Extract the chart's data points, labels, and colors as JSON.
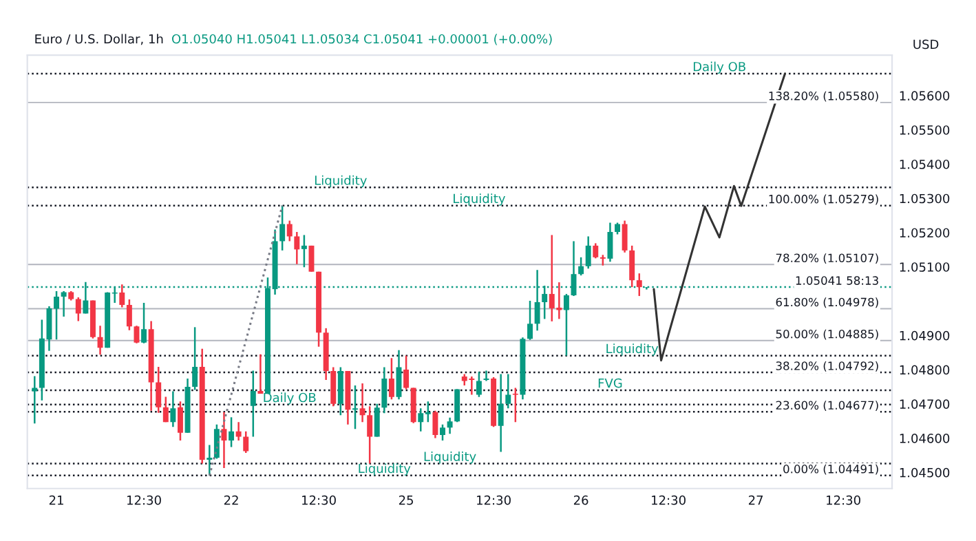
{
  "chart_data": {
    "type": "candlestick",
    "title": "Euro / U.S. Dollar, 1h",
    "subtitle": "O1.05040 H1.05041 L1.05034 C1.05041 +0.00001 (+0.00%)",
    "categories": [
      null,
      null,
      null,
      "21",
      null,
      null,
      null,
      null,
      null,
      null,
      null,
      null,
      null,
      null,
      null,
      "12:30",
      null,
      null,
      null,
      null,
      null,
      null,
      null,
      null,
      null,
      null,
      null,
      "22",
      null,
      null,
      null,
      null,
      null,
      null,
      null,
      null,
      null,
      null,
      null,
      "12:30",
      null,
      null,
      null,
      null,
      null,
      null,
      null,
      null,
      null,
      null,
      null,
      "25",
      null,
      null,
      null,
      null,
      null,
      null,
      null,
      null,
      null,
      null,
      null,
      "12:30",
      null,
      null,
      null,
      null,
      null,
      null,
      null,
      null,
      null,
      null,
      null,
      "26",
      null,
      null,
      null,
      null,
      null,
      null,
      null,
      null,
      null,
      null,
      null,
      "12:30",
      null,
      null,
      null,
      null,
      null,
      null,
      null,
      null,
      null,
      null,
      null,
      "27",
      null,
      null,
      null,
      null,
      null,
      null,
      null,
      null,
      null,
      null,
      null,
      "12:30",
      null,
      null,
      null,
      null,
      null,
      null
    ],
    "ohlc": [
      [
        1.04737,
        1.04781,
        1.04643,
        1.04747
      ],
      [
        1.04747,
        1.04946,
        1.0471,
        1.04891
      ],
      [
        1.04888,
        1.04985,
        1.04855,
        1.04979
      ],
      [
        1.04978,
        1.05029,
        1.04888,
        1.05013
      ],
      [
        1.05013,
        1.05029,
        1.04955,
        1.05026
      ],
      [
        1.05026,
        1.05029,
        1.05002,
        1.05006
      ],
      [
        1.05006,
        1.05011,
        1.04942,
        1.04964
      ],
      [
        1.04964,
        1.05056,
        1.04964,
        1.05002
      ],
      [
        1.05002,
        1.05002,
        1.04891,
        1.04895
      ],
      [
        1.04895,
        1.04928,
        1.04844,
        1.04864
      ],
      [
        1.04864,
        1.05026,
        1.04864,
        1.05025
      ],
      [
        1.05022,
        1.05042,
        1.04995,
        1.05025
      ],
      [
        1.05025,
        1.05049,
        1.04982,
        1.04989
      ],
      [
        1.04989,
        1.05005,
        1.04915,
        1.04926
      ],
      [
        1.04926,
        1.04928,
        1.04877,
        1.04879
      ],
      [
        1.04879,
        1.04995,
        1.04877,
        1.04918
      ],
      [
        1.04918,
        1.04942,
        1.0468,
        1.04763
      ],
      [
        1.04763,
        1.04808,
        1.04674,
        1.0469
      ],
      [
        1.0469,
        1.04721,
        1.04647,
        1.04647
      ],
      [
        1.04647,
        1.04737,
        1.04633,
        1.04687
      ],
      [
        1.0469,
        1.04707,
        1.04593,
        1.04616
      ],
      [
        1.04616,
        1.04774,
        1.04616,
        1.0475
      ],
      [
        1.0475,
        1.04924,
        1.04741,
        1.04808
      ],
      [
        1.04808,
        1.04861,
        1.04526,
        1.04537
      ],
      [
        1.04537,
        1.0458,
        1.04491,
        1.04543
      ],
      [
        1.04543,
        1.0464,
        1.0454,
        1.04627
      ],
      [
        1.04627,
        1.04676,
        1.04513,
        1.04593
      ],
      [
        1.04593,
        1.04661,
        1.04574,
        1.0462
      ],
      [
        1.0462,
        1.04647,
        1.04593,
        1.04604
      ],
      [
        1.04604,
        1.0462,
        1.04557,
        1.04562
      ],
      [
        1.04694,
        1.04797,
        1.04604,
        1.04738
      ],
      [
        1.04738,
        1.04845,
        1.0473,
        1.0473
      ],
      [
        1.0473,
        1.05069,
        1.0473,
        1.05038
      ],
      [
        1.05035,
        1.05209,
        1.05019,
        1.05175
      ],
      [
        1.05175,
        1.05279,
        1.05148,
        1.05225
      ],
      [
        1.05225,
        1.05235,
        1.05175,
        1.05189
      ],
      [
        1.05189,
        1.05202,
        1.05108,
        1.05151
      ],
      [
        1.05152,
        1.05193,
        1.05099,
        1.05162
      ],
      [
        1.05162,
        1.05162,
        1.05086,
        1.05086
      ],
      [
        1.05086,
        1.05086,
        1.04867,
        1.04908
      ],
      [
        1.04908,
        1.04921,
        1.0477,
        1.04796
      ],
      [
        1.04796,
        1.04807,
        1.04693,
        1.047
      ],
      [
        1.047,
        1.04807,
        1.04667,
        1.04796
      ],
      [
        1.04796,
        1.04796,
        1.0464,
        1.04683
      ],
      [
        1.04683,
        1.04754,
        1.04627,
        1.04687
      ],
      [
        1.04687,
        1.0476,
        1.04647,
        1.04667
      ],
      [
        1.04667,
        1.04693,
        1.04526,
        1.04604
      ],
      [
        1.04604,
        1.047,
        1.04604,
        1.04689
      ],
      [
        1.04689,
        1.04807,
        1.04673,
        1.04774
      ],
      [
        1.04774,
        1.04834,
        1.04713,
        1.0472
      ],
      [
        1.0472,
        1.04857,
        1.04713,
        1.04807
      ],
      [
        1.048,
        1.04841,
        1.04743,
        1.04747
      ],
      [
        1.04747,
        1.04747,
        1.04644,
        1.04647
      ],
      [
        1.04647,
        1.04687,
        1.0462,
        1.04673
      ],
      [
        1.0467,
        1.04707,
        1.04647,
        1.04676
      ],
      [
        1.04676,
        1.0468,
        1.046,
        1.04609
      ],
      [
        1.04609,
        1.0464,
        1.04593,
        1.04631
      ],
      [
        1.04631,
        1.0466,
        1.04613,
        1.04649
      ],
      [
        1.04649,
        1.04743,
        1.04647,
        1.04743
      ],
      [
        1.0478,
        1.04787,
        1.04754,
        1.04767
      ],
      [
        1.04774,
        1.0478,
        1.04727,
        1.0477
      ],
      [
        1.04727,
        1.04794,
        1.0472,
        1.04767
      ],
      [
        1.0477,
        1.04797,
        1.04767,
        1.04774
      ],
      [
        1.04774,
        1.04778,
        1.04633,
        1.04636
      ],
      [
        1.04636,
        1.04787,
        1.0456,
        1.047
      ],
      [
        1.047,
        1.04787,
        1.04687,
        1.04727
      ],
      [
        1.0473,
        1.04747,
        1.04647,
        1.04727
      ],
      [
        1.04727,
        1.04894,
        1.04713,
        1.0489
      ],
      [
        1.0489,
        1.05001,
        1.04887,
        1.04934
      ],
      [
        1.04934,
        1.05091,
        1.04914,
        1.04997
      ],
      [
        1.04997,
        1.05045,
        1.04948,
        1.05021
      ],
      [
        1.05021,
        1.05193,
        1.04941,
        1.04979
      ],
      [
        1.04981,
        1.05055,
        1.04948,
        1.04974
      ],
      [
        1.04974,
        1.05021,
        1.04841,
        1.05017
      ],
      [
        1.05017,
        1.05175,
        1.05015,
        1.05079
      ],
      [
        1.05079,
        1.05128,
        1.05075,
        1.05102
      ],
      [
        1.05102,
        1.05189,
        1.05095,
        1.05162
      ],
      [
        1.05162,
        1.05169,
        1.05125,
        1.05128
      ],
      [
        1.05128,
        1.05135,
        1.05104,
        1.05124
      ],
      [
        1.05124,
        1.05229,
        1.05115,
        1.05202
      ],
      [
        1.05202,
        1.05229,
        1.05195,
        1.05225
      ],
      [
        1.05225,
        1.05235,
        1.05142,
        1.05148
      ],
      [
        1.05148,
        1.05162,
        1.05041,
        1.05061
      ],
      [
        1.05061,
        1.05081,
        1.05015,
        1.05041
      ],
      [
        1.0504,
        1.05041,
        1.05034,
        1.05041
      ],
      null,
      null,
      null,
      null,
      null,
      null,
      null,
      null,
      null,
      null,
      null,
      null,
      null,
      null,
      null,
      null,
      null,
      null,
      null,
      null,
      null,
      null,
      null,
      null,
      null,
      null,
      null,
      null,
      null,
      null,
      null,
      null,
      null
    ],
    "colors": [
      "#089981",
      "#089981",
      "#089981",
      "#089981",
      "#089981",
      "#f23645",
      "#f23645",
      "#089981",
      "#f23645",
      "#f23645",
      "#089981",
      "#089981",
      "#f23645",
      "#f23645",
      "#f23645",
      "#089981",
      "#f23645",
      "#f23645",
      "#f23645",
      "#089981",
      "#f23645",
      "#089981",
      "#089981",
      "#f23645",
      "#089981",
      "#089981",
      "#f23645",
      "#089981",
      "#f23645",
      "#f23645",
      "#089981",
      "#f23645",
      "#089981",
      "#089981",
      "#089981",
      "#f23645",
      "#f23645",
      "#089981",
      "#f23645",
      "#f23645",
      "#f23645",
      "#f23645",
      "#089981",
      "#f23645",
      "#089981",
      "#f23645",
      "#f23645",
      "#089981",
      "#089981",
      "#f23645",
      "#089981",
      "#f23645",
      "#f23645",
      "#089981",
      "#089981",
      "#f23645",
      "#089981",
      "#089981",
      "#089981",
      "#f23645",
      "#f23645",
      "#089981",
      "#089981",
      "#f23645",
      "#089981",
      "#089981",
      "#f23645",
      "#089981",
      "#089981",
      "#089981",
      "#089981",
      "#f23645",
      "#f23645",
      "#089981",
      "#089981",
      "#089981",
      "#089981",
      "#f23645",
      "#f23645",
      "#089981",
      "#089981",
      "#f23645",
      "#f23645",
      "#f23645",
      "#089981",
      null,
      null,
      null,
      null,
      null,
      null,
      null,
      null,
      null,
      null,
      null,
      null,
      null,
      null,
      null,
      null,
      null,
      null,
      null,
      null,
      null,
      null,
      null,
      null,
      null,
      null,
      null,
      null,
      null,
      null,
      null,
      null,
      null
    ],
    "series": [
      {
        "type": "line",
        "color": "#333333",
        "line_style": "solid",
        "values": [
          null,
          null,
          null,
          null,
          null,
          null,
          null,
          null,
          null,
          null,
          null,
          null,
          null,
          null,
          null,
          null,
          null,
          null,
          null,
          null,
          null,
          null,
          null,
          null,
          null,
          null,
          null,
          null,
          null,
          null,
          null,
          null,
          null,
          null,
          null,
          null,
          null,
          null,
          null,
          null,
          null,
          null,
          null,
          null,
          null,
          null,
          null,
          null,
          null,
          null,
          null,
          null,
          null,
          null,
          null,
          null,
          null,
          null,
          null,
          null,
          null,
          null,
          null,
          null,
          null,
          null,
          null,
          null,
          null,
          null,
          null,
          null,
          null,
          null,
          null,
          null,
          null,
          null,
          null,
          null,
          null,
          null,
          null,
          null,
          null,
          1.05035,
          1.04827,
          null,
          null,
          null,
          null,
          null,
          1.05276,
          null,
          1.05186,
          null,
          1.05336,
          1.05278,
          null,
          null,
          null,
          null,
          null,
          1.05664,
          null,
          null,
          null,
          null,
          null,
          null,
          null,
          null,
          null,
          null,
          null,
          null,
          null,
          null
        ]
      },
      {
        "type": "line",
        "color": "#787b86",
        "line_style": "dotted",
        "values": [
          null,
          null,
          null,
          null,
          null,
          null,
          null,
          null,
          null,
          null,
          null,
          null,
          null,
          null,
          null,
          null,
          null,
          null,
          null,
          null,
          null,
          null,
          null,
          null,
          1.04491,
          null,
          null,
          null,
          null,
          null,
          null,
          null,
          null,
          null,
          1.05279,
          null,
          null,
          null,
          null,
          null,
          null,
          null,
          null,
          null,
          null,
          null,
          null,
          null,
          null,
          null,
          null,
          null,
          null,
          null,
          null,
          null,
          null,
          null,
          null,
          null,
          null,
          null,
          null,
          null,
          null,
          null,
          null,
          null,
          null,
          null,
          null,
          null,
          null,
          null,
          null,
          null,
          null,
          null,
          null,
          null,
          null,
          null,
          null,
          null,
          null,
          null,
          null,
          null,
          null,
          null,
          null,
          null,
          null,
          null,
          null,
          null,
          null,
          null,
          null,
          null,
          null,
          null,
          null,
          null,
          null,
          null,
          null,
          null,
          null,
          null,
          null,
          null,
          null,
          null,
          null,
          null,
          null,
          null
        ]
      }
    ],
    "ref_lines": [
      {
        "axis": "y",
        "value": 1.05664,
        "label": null,
        "color": "#131722",
        "line_style": "dotted"
      },
      {
        "axis": "y",
        "value": 1.0558,
        "label": "138.20% (1.05580)",
        "color": "#b2b5be",
        "line_style": "solid"
      },
      {
        "axis": "y",
        "value": 1.05332,
        "label": null,
        "color": "#131722",
        "line_style": "dotted"
      },
      {
        "axis": "y",
        "value": 1.05279,
        "label": "100.00% (1.05279)",
        "color": "#131722",
        "line_style": "dotted"
      },
      {
        "axis": "y",
        "value": 1.05107,
        "label": "78.20% (1.05107)",
        "color": "#b2b5be",
        "line_style": "solid"
      },
      {
        "axis": "y",
        "value": 1.05041,
        "label": "1.05041 58:13",
        "color": "#089981",
        "line_style": "dotted"
      },
      {
        "axis": "y",
        "value": 1.04978,
        "label": "61.80% (1.04978)",
        "color": "#b2b5be",
        "line_style": "solid"
      },
      {
        "axis": "y",
        "value": 1.04885,
        "label": "50.00% (1.04885)",
        "color": "#b2b5be",
        "line_style": "solid"
      },
      {
        "axis": "y",
        "value": 1.04841,
        "label": null,
        "color": "#131722",
        "line_style": "dotted"
      },
      {
        "axis": "y",
        "value": 1.04792,
        "label": "38.20% (1.04792)",
        "color": "#131722",
        "line_style": "dotted"
      },
      {
        "axis": "y",
        "value": 1.0474,
        "label": null,
        "color": "#131722",
        "line_style": "dotted"
      },
      {
        "axis": "y",
        "value": 1.04698,
        "label": null,
        "color": "#131722",
        "line_style": "dotted"
      },
      {
        "axis": "y",
        "value": 1.04677,
        "label": "23.60% (1.04677)",
        "color": "#131722",
        "line_style": "dotted"
      },
      {
        "axis": "y",
        "value": 1.04526,
        "label": null,
        "color": "#131722",
        "line_style": "dotted"
      },
      {
        "axis": "y",
        "value": 1.04491,
        "label": "0.00% (1.04491)",
        "color": "#131722",
        "line_style": "dotted"
      }
    ],
    "annotations": [
      {
        "text": "Daily OB",
        "y": 1.05664
      },
      {
        "text": "Liquidity",
        "y": 1.05332
      },
      {
        "text": "Liquidity",
        "y": 1.05279
      },
      {
        "text": "Liquidity",
        "y": 1.04841
      },
      {
        "text": "FVG",
        "y": 1.0474
      },
      {
        "text": "Daily OB",
        "y": 1.04698
      },
      {
        "text": "Liquidity",
        "y": 1.04526
      },
      {
        "text": "Liquidity",
        "y": 1.04491
      },
      "USD"
    ],
    "ylim": [
      1.04453,
      1.05718
    ],
    "yticks": [
      {
        "value": 1.045,
        "label": "1.04500"
      },
      {
        "value": 1.046,
        "label": "1.04600"
      },
      {
        "value": 1.047,
        "label": "1.04700"
      },
      {
        "value": 1.048,
        "label": "1.04800"
      },
      {
        "value": 1.049,
        "label": "1.04900"
      },
      {
        "value": 1.051,
        "label": "1.05100"
      },
      {
        "value": 1.052,
        "label": "1.05200"
      },
      {
        "value": 1.053,
        "label": "1.05300"
      },
      {
        "value": 1.054,
        "label": "1.05400"
      },
      {
        "value": 1.055,
        "label": "1.05500"
      },
      {
        "value": 1.056,
        "label": "1.05600"
      }
    ],
    "grid": false,
    "legend": false
  }
}
